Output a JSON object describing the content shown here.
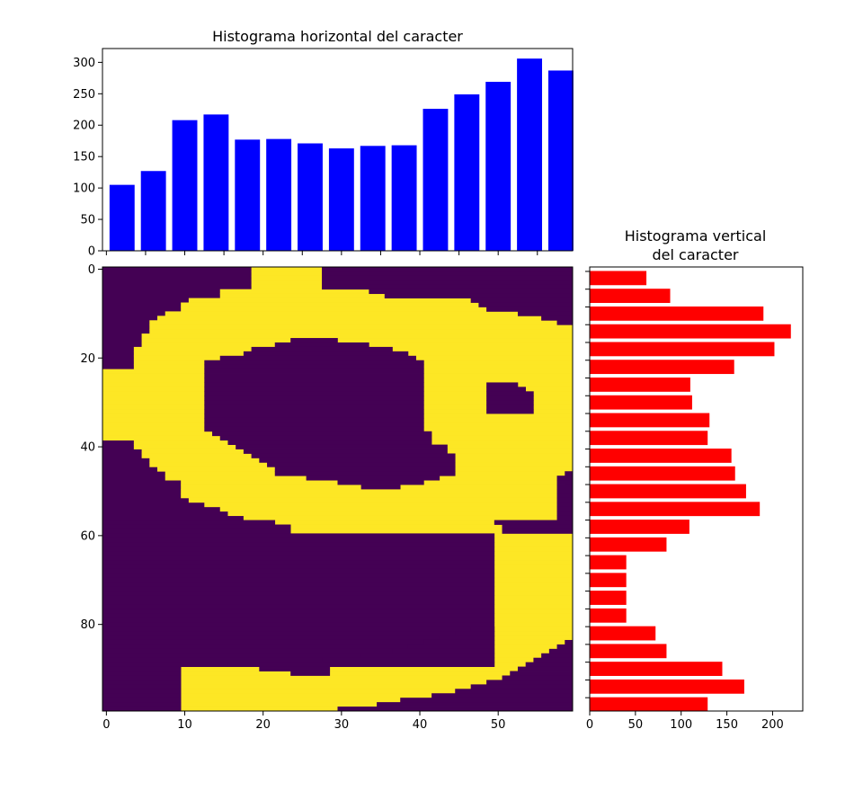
{
  "chart_data": [
    {
      "type": "bar",
      "title": "Histograma horizontal del caracter",
      "orientation": "vertical",
      "color": "#0000ff",
      "x": [
        2,
        6,
        10,
        14,
        18,
        22,
        26,
        30,
        34,
        38,
        42,
        46,
        50,
        54,
        58
      ],
      "values": [
        105,
        127,
        208,
        217,
        177,
        178,
        171,
        163,
        167,
        168,
        226,
        249,
        269,
        306,
        287
      ],
      "xlim": [
        -0.5,
        59.5
      ],
      "ylim": [
        0,
        322
      ],
      "yticks": [
        0,
        50,
        100,
        150,
        200,
        250,
        300
      ],
      "xticks": [
        0,
        10,
        20,
        30,
        40,
        50
      ],
      "xticklabels_visible": false
    },
    {
      "type": "heatmap",
      "colormap": "viridis (binary: #440154 background, #fde725 foreground)",
      "shape": [
        100,
        60
      ],
      "xlim": [
        -0.5,
        59.5
      ],
      "ylim": [
        99.5,
        -0.5
      ],
      "xticks": [
        0,
        10,
        20,
        30,
        40,
        50
      ],
      "yticks": [
        0,
        20,
        40,
        60,
        80
      ],
      "foreground_bounds": [
        [
          0,
          19,
          27
        ],
        [
          1,
          19,
          27
        ],
        [
          2,
          19,
          27
        ],
        [
          3,
          19,
          27
        ],
        [
          4,
          19,
          27
        ],
        [
          5,
          15,
          33
        ],
        [
          6,
          15,
          35
        ],
        [
          7,
          11,
          46
        ],
        [
          8,
          10,
          47
        ],
        [
          9,
          10,
          48
        ],
        [
          10,
          8,
          52
        ],
        [
          11,
          7,
          55
        ],
        [
          12,
          6,
          57
        ],
        [
          13,
          6,
          59
        ],
        [
          14,
          6,
          59
        ],
        [
          15,
          5,
          59
        ],
        [
          16,
          5,
          59
        ],
        [
          17,
          5,
          59
        ],
        [
          18,
          4,
          59
        ],
        [
          19,
          4,
          59
        ],
        [
          20,
          4,
          59
        ],
        [
          21,
          4,
          59
        ],
        [
          22,
          4,
          59
        ],
        [
          23,
          0,
          59
        ],
        [
          24,
          0,
          59
        ],
        [
          25,
          0,
          59
        ],
        [
          26,
          0,
          59
        ],
        [
          27,
          0,
          59
        ],
        [
          28,
          0,
          59
        ],
        [
          29,
          0,
          59
        ],
        [
          30,
          0,
          59
        ],
        [
          31,
          0,
          59
        ],
        [
          32,
          0,
          59
        ],
        [
          33,
          0,
          59
        ],
        [
          34,
          0,
          59
        ],
        [
          35,
          0,
          59
        ],
        [
          36,
          0,
          59
        ],
        [
          37,
          0,
          59
        ],
        [
          38,
          0,
          59
        ],
        [
          39,
          4,
          59
        ],
        [
          40,
          4,
          59
        ],
        [
          41,
          5,
          59
        ],
        [
          42,
          5,
          59
        ],
        [
          43,
          6,
          59
        ],
        [
          44,
          6,
          59
        ],
        [
          45,
          7,
          59
        ],
        [
          46,
          8,
          58
        ],
        [
          47,
          8,
          58
        ],
        [
          48,
          10,
          58
        ],
        [
          49,
          10,
          58
        ],
        [
          50,
          10,
          58
        ],
        [
          51,
          10,
          58
        ],
        [
          52,
          11,
          58
        ],
        [
          53,
          13,
          58
        ],
        [
          54,
          15,
          58
        ],
        [
          55,
          16,
          58
        ],
        [
          56,
          18,
          58
        ],
        [
          57,
          22,
          49
        ],
        [
          58,
          24,
          50
        ],
        [
          59,
          24,
          50
        ],
        [
          60,
          50,
          59
        ],
        [
          61,
          50,
          59
        ],
        [
          62,
          50,
          59
        ],
        [
          63,
          50,
          59
        ],
        [
          64,
          50,
          59
        ],
        [
          65,
          50,
          59
        ],
        [
          66,
          50,
          59
        ],
        [
          67,
          50,
          59
        ],
        [
          68,
          50,
          59
        ],
        [
          69,
          50,
          59
        ],
        [
          70,
          50,
          59
        ],
        [
          71,
          50,
          59
        ],
        [
          72,
          50,
          59
        ],
        [
          73,
          50,
          59
        ],
        [
          74,
          50,
          59
        ],
        [
          75,
          50,
          59
        ],
        [
          76,
          50,
          59
        ],
        [
          77,
          50,
          59
        ],
        [
          78,
          50,
          59
        ],
        [
          79,
          50,
          59
        ],
        [
          80,
          50,
          59
        ],
        [
          81,
          50,
          59
        ],
        [
          82,
          50,
          59
        ],
        [
          83,
          50,
          59
        ],
        [
          84,
          50,
          59
        ],
        [
          85,
          50,
          59
        ],
        [
          86,
          50,
          59
        ],
        [
          87,
          50,
          59
        ],
        [
          88,
          50,
          59
        ],
        [
          89,
          50,
          59
        ],
        [
          90,
          10,
          59
        ],
        [
          91,
          10,
          59
        ],
        [
          92,
          10,
          59
        ],
        [
          93,
          10,
          59
        ],
        [
          94,
          10,
          59
        ],
        [
          95,
          10,
          59
        ],
        [
          96,
          10,
          59
        ],
        [
          97,
          10,
          59
        ],
        [
          98,
          10,
          59
        ],
        [
          99,
          10,
          59
        ]
      ],
      "background_holes": [
        [
          16,
          24,
          29
        ],
        [
          17,
          22,
          33
        ],
        [
          18,
          19,
          36
        ],
        [
          19,
          18,
          38
        ],
        [
          20,
          15,
          39
        ],
        [
          21,
          13,
          40
        ],
        [
          22,
          13,
          40
        ],
        [
          23,
          13,
          40
        ],
        [
          24,
          13,
          40
        ],
        [
          25,
          13,
          40
        ],
        [
          26,
          13,
          40
        ],
        [
          27,
          13,
          40
        ],
        [
          28,
          13,
          40
        ],
        [
          29,
          13,
          40
        ],
        [
          30,
          13,
          40
        ],
        [
          31,
          13,
          40
        ],
        [
          32,
          13,
          40
        ],
        [
          33,
          13,
          40
        ],
        [
          34,
          13,
          40
        ],
        [
          35,
          13,
          40
        ],
        [
          36,
          13,
          40
        ],
        [
          37,
          14,
          41
        ],
        [
          38,
          15,
          41
        ],
        [
          39,
          16,
          41
        ],
        [
          40,
          17,
          43
        ],
        [
          41,
          18,
          43
        ],
        [
          42,
          19,
          44
        ],
        [
          43,
          20,
          44
        ],
        [
          44,
          21,
          44
        ],
        [
          45,
          22,
          44
        ],
        [
          46,
          22,
          44
        ],
        [
          47,
          26,
          42
        ],
        [
          48,
          30,
          40
        ],
        [
          49,
          33,
          37
        ],
        [
          26,
          49,
          52
        ],
        [
          27,
          49,
          53
        ],
        [
          28,
          49,
          54
        ],
        [
          29,
          49,
          54
        ],
        [
          30,
          49,
          54
        ],
        [
          31,
          49,
          54
        ],
        [
          32,
          49,
          54
        ],
        [
          46,
          59,
          59
        ],
        [
          47,
          58,
          59
        ],
        [
          48,
          58,
          59
        ],
        [
          49,
          58,
          59
        ],
        [
          50,
          58,
          59
        ],
        [
          51,
          58,
          59
        ],
        [
          52,
          58,
          59
        ],
        [
          53,
          58,
          59
        ],
        [
          54,
          58,
          59
        ],
        [
          55,
          58,
          59
        ],
        [
          56,
          58,
          59
        ],
        [
          60,
          0,
          49
        ],
        [
          61,
          0,
          49
        ],
        [
          62,
          0,
          49
        ],
        [
          63,
          0,
          49
        ],
        [
          64,
          0,
          49
        ],
        [
          65,
          0,
          49
        ],
        [
          66,
          0,
          49
        ],
        [
          67,
          0,
          49
        ],
        [
          68,
          0,
          49
        ],
        [
          69,
          0,
          49
        ],
        [
          70,
          0,
          49
        ],
        [
          71,
          0,
          49
        ],
        [
          72,
          0,
          49
        ],
        [
          73,
          0,
          49
        ],
        [
          74,
          0,
          49
        ],
        [
          75,
          0,
          49
        ],
        [
          76,
          0,
          49
        ],
        [
          77,
          0,
          49
        ],
        [
          78,
          0,
          49
        ],
        [
          79,
          0,
          49
        ],
        [
          80,
          0,
          49
        ],
        [
          81,
          0,
          49
        ],
        [
          82,
          0,
          49
        ],
        [
          83,
          0,
          49
        ],
        [
          84,
          0,
          49
        ],
        [
          85,
          0,
          49
        ],
        [
          86,
          0,
          49
        ],
        [
          87,
          0,
          49
        ],
        [
          88,
          0,
          49
        ],
        [
          89,
          0,
          49
        ],
        [
          90,
          0,
          9
        ],
        [
          81,
          47,
          49
        ],
        [
          82,
          45,
          49
        ],
        [
          83,
          43,
          49
        ],
        [
          84,
          41,
          49
        ],
        [
          85,
          39,
          49
        ],
        [
          86,
          37,
          49
        ],
        [
          87,
          33,
          49
        ],
        [
          88,
          28,
          49
        ],
        [
          89,
          16,
          49
        ],
        [
          90,
          20,
          28
        ],
        [
          91,
          24,
          28
        ],
        [
          84,
          59,
          59
        ],
        [
          85,
          58,
          59
        ],
        [
          86,
          57,
          59
        ],
        [
          87,
          56,
          59
        ],
        [
          88,
          55,
          59
        ],
        [
          89,
          54,
          59
        ],
        [
          90,
          53,
          59
        ],
        [
          91,
          52,
          59
        ],
        [
          92,
          51,
          59
        ],
        [
          93,
          49,
          59
        ],
        [
          94,
          47,
          59
        ],
        [
          95,
          45,
          59
        ],
        [
          96,
          42,
          59
        ],
        [
          97,
          38,
          59
        ],
        [
          98,
          35,
          59
        ],
        [
          99,
          30,
          59
        ],
        [
          91,
          0,
          9
        ],
        [
          92,
          0,
          9
        ],
        [
          93,
          0,
          9
        ],
        [
          94,
          0,
          9
        ],
        [
          95,
          0,
          9
        ],
        [
          96,
          0,
          9
        ],
        [
          97,
          0,
          9
        ],
        [
          98,
          0,
          9
        ],
        [
          99,
          0,
          9
        ],
        [
          57,
          0,
          21
        ],
        [
          58,
          0,
          23
        ],
        [
          59,
          0,
          23
        ],
        [
          57,
          50,
          59
        ],
        [
          58,
          51,
          59
        ],
        [
          59,
          51,
          59
        ],
        [
          0,
          28,
          59
        ],
        [
          1,
          28,
          59
        ],
        [
          2,
          28,
          59
        ],
        [
          3,
          28,
          59
        ],
        [
          4,
          28,
          59
        ],
        [
          5,
          34,
          59
        ],
        [
          6,
          36,
          59
        ],
        [
          7,
          47,
          59
        ],
        [
          8,
          48,
          59
        ],
        [
          9,
          49,
          59
        ],
        [
          10,
          53,
          59
        ],
        [
          11,
          56,
          59
        ],
        [
          12,
          58,
          59
        ]
      ]
    },
    {
      "type": "bar",
      "title": "Histograma vertical\ndel caracter",
      "orientation": "horizontal",
      "color": "#ff0000",
      "y": [
        2,
        6,
        10,
        14,
        18,
        22,
        26,
        30,
        34,
        38,
        42,
        46,
        50,
        54,
        58,
        62,
        66,
        70,
        74,
        78,
        82,
        86,
        90,
        94,
        98
      ],
      "values": [
        62,
        88,
        190,
        220,
        202,
        158,
        110,
        112,
        131,
        129,
        155,
        159,
        171,
        186,
        109,
        84,
        40,
        40,
        40,
        40,
        72,
        84,
        145,
        169,
        129
      ],
      "xlim": [
        0,
        233
      ],
      "ylim": [
        99.5,
        -0.5
      ],
      "xticks": [
        0,
        50,
        100,
        150,
        200
      ],
      "yticks": [
        0,
        20,
        40,
        60,
        80
      ],
      "yticklabels_visible": false
    }
  ]
}
